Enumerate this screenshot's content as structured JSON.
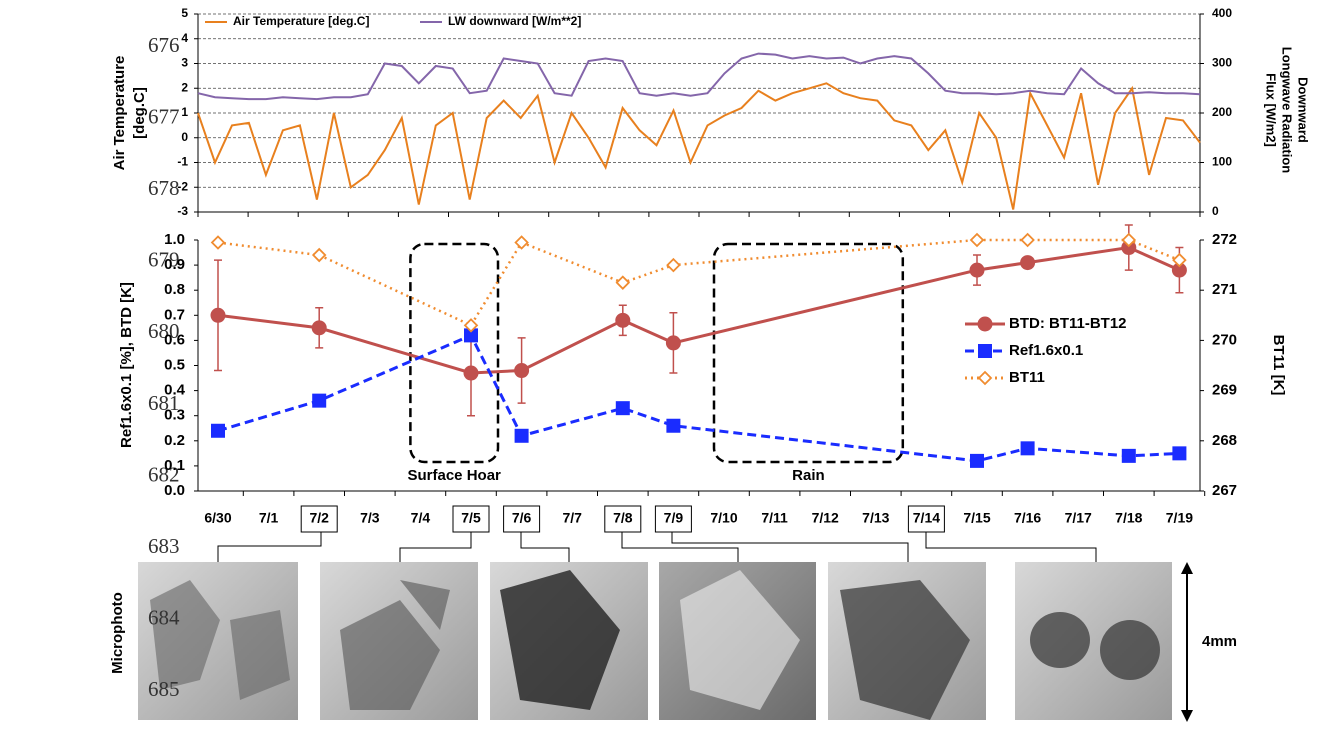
{
  "line_numbers": [
    "676",
    "677",
    "678",
    "679",
    "680",
    "681",
    "682",
    "683",
    "684",
    "685"
  ],
  "microphoto_label": "Microphoto",
  "scale_label": "4mm",
  "chart_data": [
    {
      "type": "line",
      "ylabel": [
        "Air Temperature",
        "[deg.C]"
      ],
      "y2label": [
        "Downward",
        "Longwave Radiation",
        "Flux [W/m2]"
      ],
      "ylim": [
        -3,
        5
      ],
      "yticks": [
        -3,
        -2,
        -1,
        0,
        1,
        2,
        3,
        4,
        5
      ],
      "y2lim": [
        0,
        400
      ],
      "y2ticks": [
        0,
        100,
        200,
        300,
        400
      ],
      "grid": true,
      "legend": "top-left",
      "series": [
        {
          "name": "Air Temperature [deg.C]",
          "color": "#e8801e",
          "values": [
            1.0,
            -1.0,
            0.5,
            0.6,
            -1.5,
            0.3,
            0.5,
            -2.5,
            1.0,
            -2.0,
            -1.5,
            -0.5,
            0.8,
            -2.7,
            0.5,
            1.0,
            -2.5,
            0.8,
            1.5,
            0.8,
            1.7,
            -1.0,
            1.0,
            0.0,
            -1.2,
            1.2,
            0.3,
            -0.3,
            1.1,
            -1.0,
            0.5,
            0.9,
            1.2,
            1.9,
            1.5,
            1.8,
            2.0,
            2.2,
            1.8,
            1.6,
            1.5,
            0.7,
            0.5,
            -0.5,
            0.3,
            -1.8,
            1.0,
            0.0,
            -2.9,
            1.8,
            0.5,
            -0.8,
            1.8,
            -1.9,
            1.0,
            2.0,
            -1.5,
            0.8,
            0.7,
            -0.2
          ]
        },
        {
          "name": "LW downward [W/m**2]",
          "color": "#8466aa",
          "axis": "y2",
          "values": [
            240,
            232,
            230,
            228,
            228,
            232,
            230,
            228,
            232,
            232,
            238,
            300,
            295,
            260,
            295,
            290,
            240,
            245,
            310,
            305,
            300,
            240,
            235,
            305,
            310,
            305,
            240,
            235,
            240,
            235,
            240,
            280,
            310,
            320,
            318,
            310,
            315,
            310,
            312,
            300,
            310,
            315,
            310,
            280,
            245,
            240,
            240,
            238,
            240,
            245,
            240,
            238,
            290,
            260,
            240,
            240,
            242,
            240,
            240,
            238
          ]
        }
      ]
    },
    {
      "type": "line",
      "ylabel": "Ref1.6x0.1 [%],  BTD [K]",
      "y2label": "BT11 [K]",
      "categories": [
        "6/30",
        "7/1",
        "7/2",
        "7/3",
        "7/4",
        "7/5",
        "7/6",
        "7/7",
        "7/8",
        "7/9",
        "7/10",
        "7/11",
        "7/12",
        "7/13",
        "7/14",
        "7/15",
        "7/16",
        "7/17",
        "7/18",
        "7/19"
      ],
      "highlighted_categories": [
        "7/2",
        "7/5",
        "7/6",
        "7/8",
        "7/9",
        "7/14"
      ],
      "ylim": [
        0,
        1
      ],
      "yticks": [
        {
          "value": 0,
          "label": "0.0"
        },
        0.1,
        0.2,
        0.3,
        0.4,
        0.5,
        0.6,
        0.7,
        0.8,
        0.9,
        {
          "value": 1,
          "label": "1.0"
        }
      ],
      "y2lim": [
        267,
        272
      ],
      "y2ticks": [
        267,
        268,
        269,
        270,
        271,
        272
      ],
      "legend": "right",
      "annotations": [
        {
          "text": "Surface Hoar",
          "span": [
            "7/4",
            "7/5"
          ]
        },
        {
          "text": "Rain",
          "span": [
            "7/10",
            "7/13"
          ]
        }
      ],
      "series": [
        {
          "name": "BTD: BT11-BT12",
          "color": "#c0504d",
          "marker": "circle",
          "dash": "solid",
          "x": [
            "6/30",
            "7/2",
            "7/5",
            "7/6",
            "7/8",
            "7/9",
            "7/15",
            "7/16",
            "7/18",
            "7/19"
          ],
          "values": [
            0.7,
            0.65,
            0.47,
            0.48,
            0.68,
            0.59,
            0.88,
            0.91,
            0.97,
            0.88
          ],
          "errors": [
            0.22,
            0.08,
            0.17,
            0.13,
            0.06,
            0.12,
            0.06,
            0.02,
            0.09,
            0.09
          ]
        },
        {
          "name": "Ref1.6x0.1",
          "color": "#1a2cff",
          "marker": "square",
          "dash": "dashed",
          "x": [
            "6/30",
            "7/2",
            "7/5",
            "7/6",
            "7/8",
            "7/9",
            "7/15",
            "7/16",
            "7/18",
            "7/19"
          ],
          "values": [
            0.24,
            0.36,
            0.62,
            0.22,
            0.33,
            0.26,
            0.12,
            0.17,
            0.14,
            0.15
          ]
        },
        {
          "name": "BT11",
          "color": "#f08c30",
          "marker": "diamond",
          "dash": "dotted",
          "axis": "y2",
          "x": [
            "6/30",
            "7/2",
            "7/5",
            "7/6",
            "7/8",
            "7/9",
            "7/15",
            "7/16",
            "7/18",
            "7/19"
          ],
          "values": [
            271.95,
            271.7,
            270.3,
            271.95,
            271.15,
            271.5,
            272.0,
            272.0,
            272.0,
            271.6
          ]
        }
      ]
    }
  ]
}
